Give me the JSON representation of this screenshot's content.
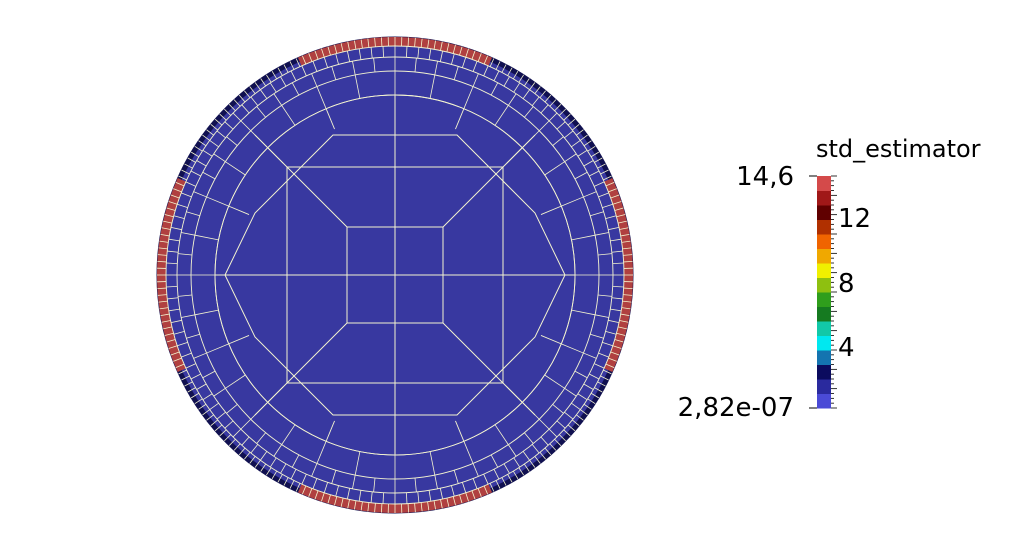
{
  "scalar_bar": {
    "title": "std_estimator",
    "max_label": "14,6",
    "min_label": "2,82e-07",
    "tick_labels": [
      "12",
      "8",
      "4"
    ],
    "colors": [
      "#4a4ad6",
      "#2a2a9e",
      "#0b0b5e",
      "#1474b0",
      "#00e8f0",
      "#12c8a8",
      "#157a20",
      "#2f9e1c",
      "#8ec010",
      "#f0f000",
      "#f0a800",
      "#f06400",
      "#b03000",
      "#600000",
      "#a01818",
      "#d44a4a"
    ]
  },
  "mesh": {
    "fill_color": "#3838a0",
    "edge_color": "#f4f4d0",
    "high_color": "#b04040",
    "outer_ring_color": "#101050"
  }
}
